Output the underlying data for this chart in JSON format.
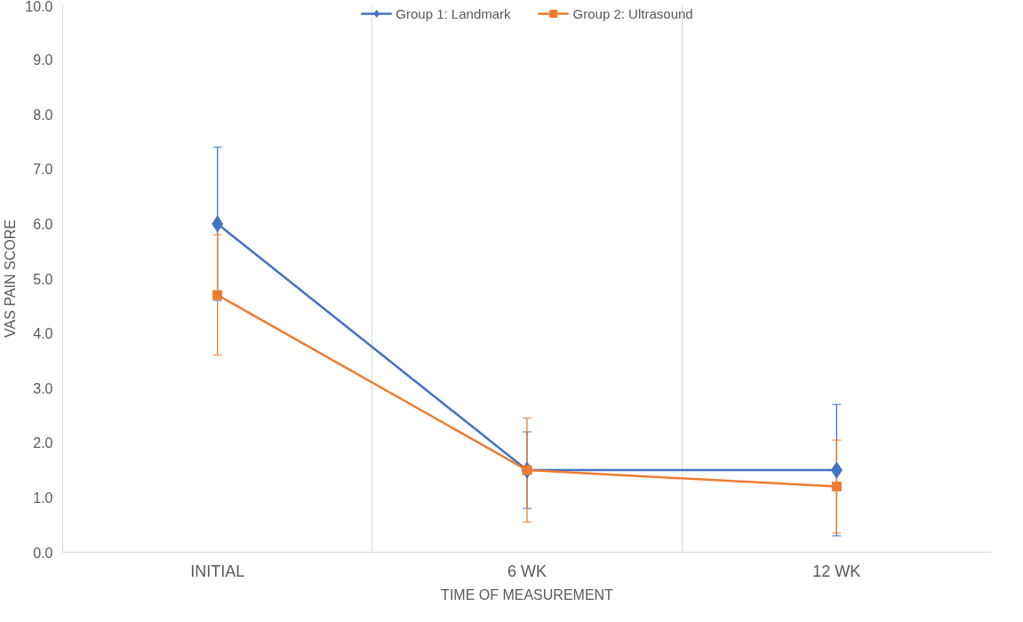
{
  "chart_data": {
    "type": "line",
    "xlabel": "TIME OF MEASUREMENT",
    "ylabel": "VAS PAIN SCORE",
    "categories": [
      "INITIAL",
      "6 WK",
      "12 WK"
    ],
    "series": [
      {
        "name": "Group 1: Landmark",
        "color": "#4472c4",
        "marker": "diamond",
        "values": [
          6.0,
          1.5,
          1.5
        ],
        "errors": [
          1.4,
          0.7,
          1.2
        ]
      },
      {
        "name": "Group 2: Ultrasound",
        "color": "#ed7d31",
        "marker": "square",
        "values": [
          4.7,
          1.5,
          1.2
        ],
        "errors": [
          1.1,
          0.95,
          0.85
        ]
      }
    ],
    "ylim": [
      0,
      10
    ],
    "yticks": [
      {
        "value": 0,
        "label": "0.0"
      },
      {
        "value": 1,
        "label": "1.0"
      },
      {
        "value": 2,
        "label": "2.0"
      },
      {
        "value": 3,
        "label": "3.0"
      },
      {
        "value": 4,
        "label": "4.0"
      },
      {
        "value": 5,
        "label": "5.0"
      },
      {
        "value": 6,
        "label": "6.0"
      },
      {
        "value": 7,
        "label": "7.0"
      },
      {
        "value": 8,
        "label": "8.0"
      },
      {
        "value": 9,
        "label": "9.0"
      },
      {
        "value": 10,
        "label": "10.0"
      }
    ],
    "grid": "x",
    "legend": "top",
    "line_style": "solid"
  }
}
